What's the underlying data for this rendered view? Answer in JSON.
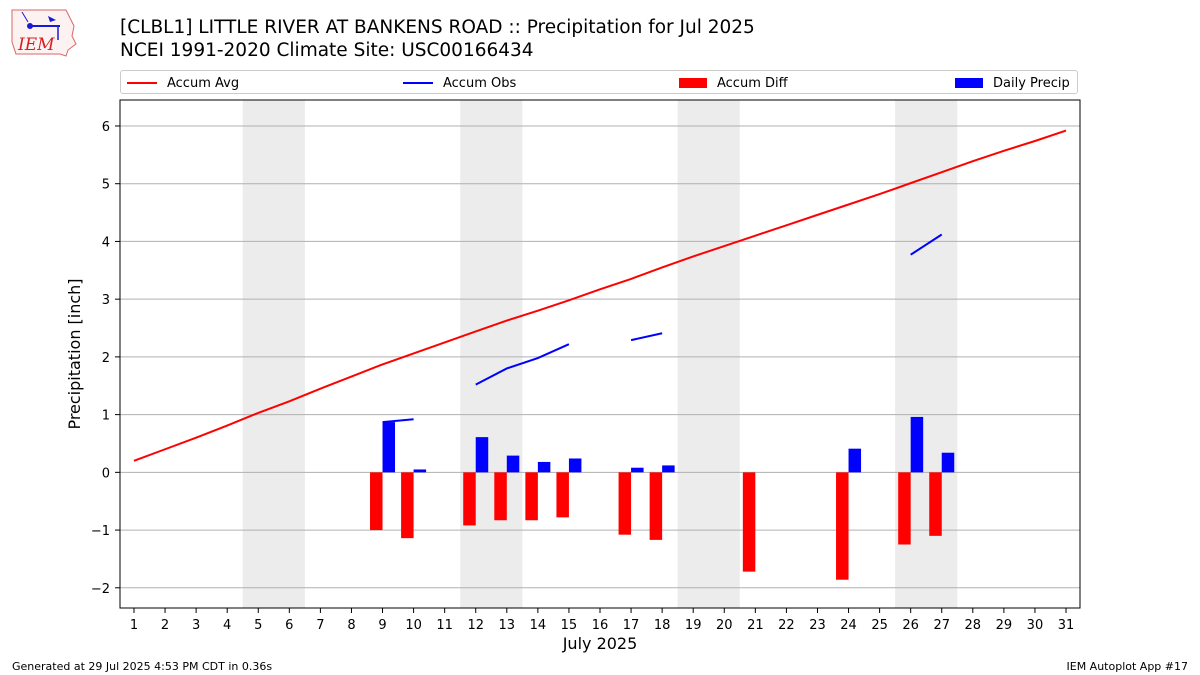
{
  "header": {
    "title_line1": "[CLBL1] LITTLE RIVER AT BANKENS ROAD :: Precipitation for Jul 2025",
    "title_line2": "NCEI 1991-2020 Climate Site: USC00166434",
    "logo_text": "IEM"
  },
  "footer": {
    "generated": "Generated at 29 Jul 2025 4:53 PM CDT in 0.36s",
    "app": "IEM Autoplot App #17"
  },
  "colors": {
    "avg": "#ff0000",
    "obs": "#0000ff",
    "diff": "#ff0000",
    "daily": "#0000ff",
    "weekend": "#ececec",
    "grid": "#b0b0b0"
  },
  "chart_data": {
    "type": "line",
    "xlabel": "July 2025",
    "ylabel": "Precipitation [inch]",
    "ylim": [
      -2.35,
      6.45
    ],
    "yticks": [
      -2,
      -1,
      0,
      1,
      2,
      3,
      4,
      5,
      6
    ],
    "x": [
      1,
      2,
      3,
      4,
      5,
      6,
      7,
      8,
      9,
      10,
      11,
      12,
      13,
      14,
      15,
      16,
      17,
      18,
      19,
      20,
      21,
      22,
      23,
      24,
      25,
      26,
      27,
      28,
      29,
      30,
      31
    ],
    "weekend_spans": [
      [
        5,
        6
      ],
      [
        12,
        13
      ],
      [
        19,
        20
      ],
      [
        26,
        27
      ]
    ],
    "grid": "horizontal",
    "legend_position": "top",
    "legend": [
      "Accum Avg",
      "Accum Obs",
      "Accum Diff",
      "Daily Precip"
    ],
    "series": [
      {
        "name": "Accum Avg",
        "kind": "line",
        "x": [
          1,
          2,
          3,
          4,
          5,
          6,
          7,
          8,
          9,
          10,
          11,
          12,
          13,
          14,
          15,
          16,
          17,
          18,
          19,
          20,
          21,
          22,
          23,
          24,
          25,
          26,
          27,
          28,
          29,
          30,
          31
        ],
        "values": [
          0.2,
          0.4,
          0.6,
          0.81,
          1.03,
          1.23,
          1.45,
          1.66,
          1.87,
          2.06,
          2.25,
          2.44,
          2.63,
          2.8,
          2.98,
          3.17,
          3.35,
          3.55,
          3.74,
          3.92,
          4.1,
          4.28,
          4.46,
          4.64,
          4.82,
          5.01,
          5.2,
          5.39,
          5.57,
          5.74,
          5.92
        ]
      },
      {
        "name": "Accum Obs",
        "kind": "line",
        "x": [
          9,
          10,
          11,
          12,
          13,
          14,
          15,
          16,
          17,
          18,
          19,
          20,
          21,
          22,
          23,
          24,
          25,
          26,
          27
        ],
        "values": [
          0.87,
          0.92,
          null,
          1.52,
          1.8,
          1.98,
          2.22,
          null,
          2.29,
          2.41,
          null,
          null,
          null,
          null,
          null,
          null,
          null,
          3.77,
          4.12
        ]
      },
      {
        "name": "Accum Diff",
        "kind": "bar",
        "x": [
          9,
          10,
          12,
          13,
          14,
          15,
          17,
          18,
          21,
          24,
          26,
          27
        ],
        "values": [
          -1.0,
          -1.14,
          -0.92,
          -0.83,
          -0.83,
          -0.78,
          -1.08,
          -1.17,
          -1.72,
          -1.86,
          -1.25,
          -1.1
        ]
      },
      {
        "name": "Daily Precip",
        "kind": "bar",
        "x": [
          9,
          10,
          12,
          13,
          14,
          15,
          17,
          18,
          24,
          26,
          27
        ],
        "values": [
          0.87,
          0.05,
          0.61,
          0.29,
          0.18,
          0.24,
          0.08,
          0.12,
          0.41,
          0.96,
          0.34
        ]
      }
    ]
  }
}
